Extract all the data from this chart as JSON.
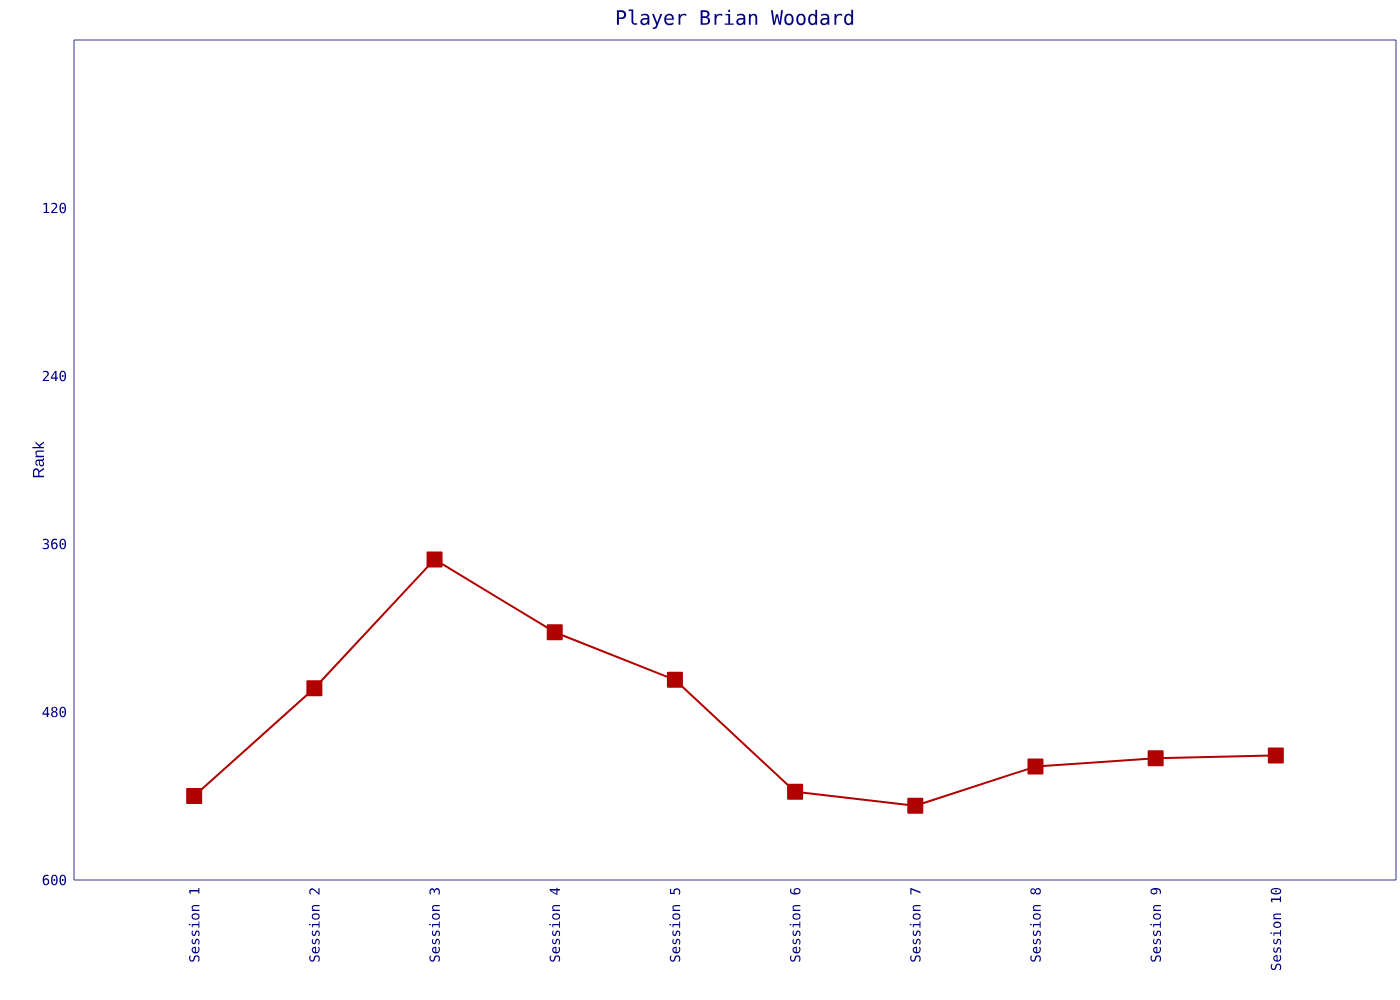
{
  "chart_data": {
    "type": "line",
    "title": "Player Brian Woodard",
    "ylabel": "Rank",
    "categories": [
      "Session 1",
      "Session 2",
      "Session 3",
      "Session 4",
      "Session 5",
      "Session 6",
      "Session 7",
      "Session 8",
      "Session 9",
      "Session 10"
    ],
    "series": [
      {
        "color": "#b00000",
        "values": [
          540,
          463,
          371,
          423,
          457,
          537,
          547,
          519,
          513,
          511
        ]
      }
    ],
    "ylim": [
      600,
      0
    ],
    "yticks": [
      120,
      240,
      360,
      480,
      600
    ],
    "marker": "square",
    "line_style": "solid"
  }
}
